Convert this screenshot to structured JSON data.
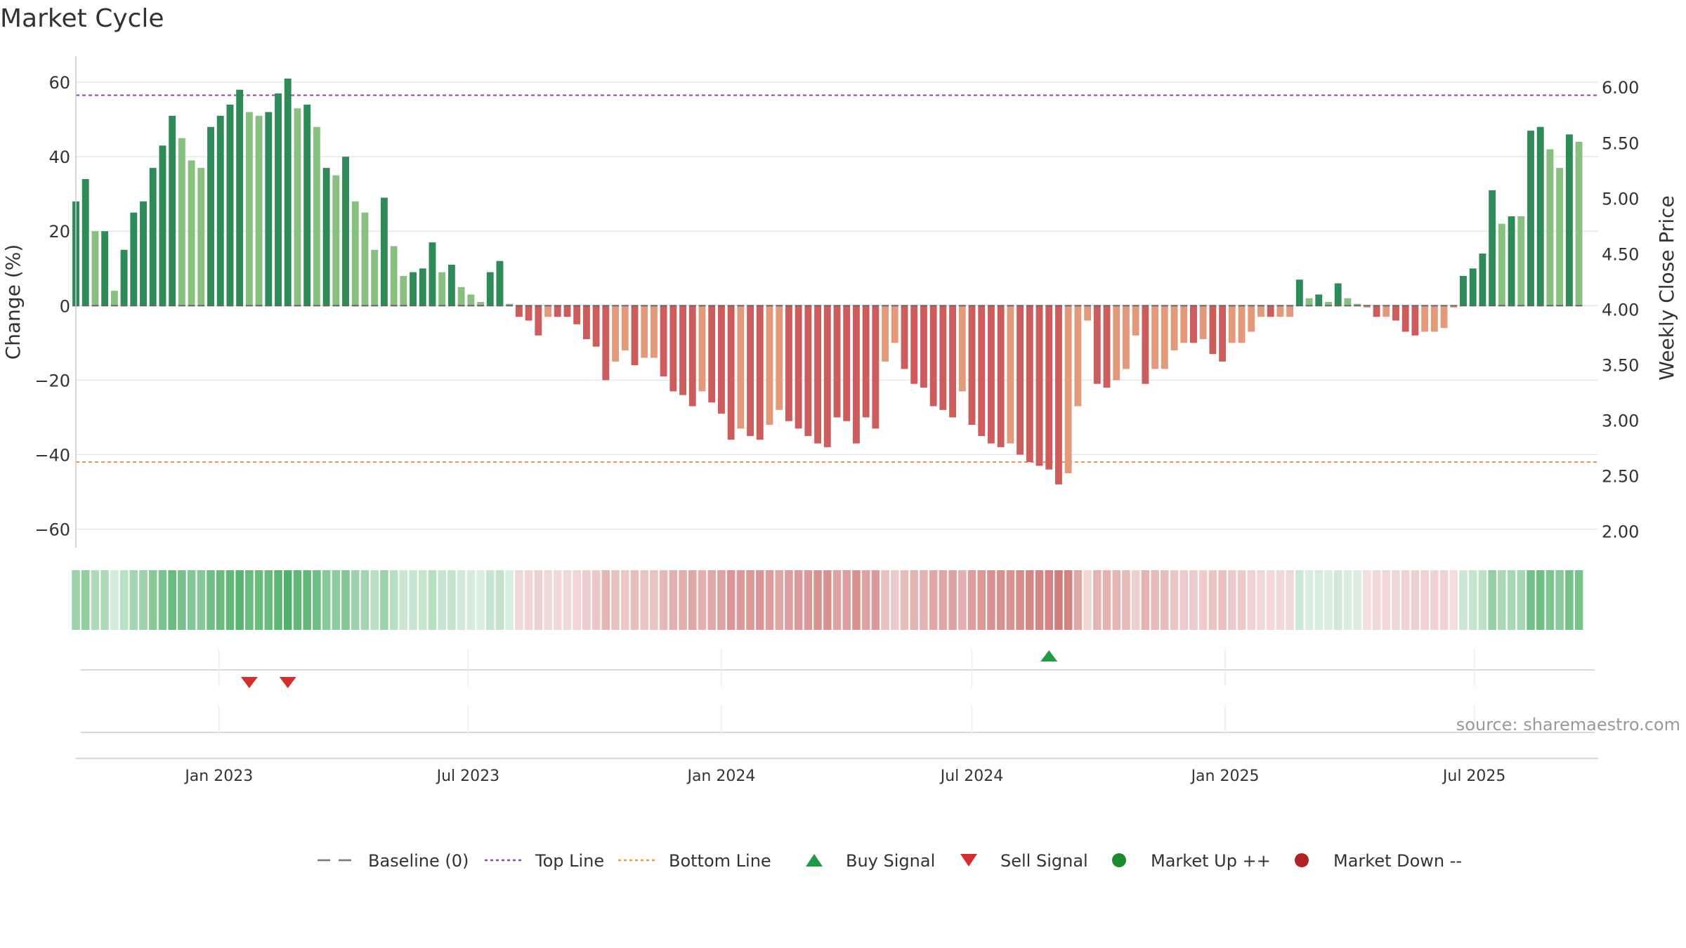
{
  "chart_data": {
    "type": "bar",
    "title": "Market Cycle",
    "ylabel": "Change (%)",
    "y2label": "Weekly Close Price",
    "ylim": [
      -65,
      67
    ],
    "y2lim": [
      1.85,
      6.28
    ],
    "yticks": [
      60,
      40,
      20,
      0,
      -20,
      -40,
      -60
    ],
    "yticklabels": [
      "60",
      "40",
      "20",
      "0",
      "−20",
      "−40",
      "−60"
    ],
    "y2ticks": [
      6.0,
      5.5,
      5.0,
      4.5,
      4.0,
      3.5,
      3.0,
      2.5,
      2.0
    ],
    "y2ticklabels": [
      "6.00",
      "5.50",
      "5.00",
      "4.50",
      "4.00",
      "3.50",
      "3.00",
      "2.50",
      "2.00"
    ],
    "top_line": 56.5,
    "bottom_line": -42,
    "x_start": "2022-09-19",
    "x_end": "2025-09-29",
    "xticks": [
      "2023-01-01",
      "2023-07-01",
      "2024-01-01",
      "2024-07-01",
      "2025-01-01",
      "2025-07-01"
    ],
    "xticklabels": [
      "Jan 2023",
      "Jul 2023",
      "Jan 2024",
      "Jul 2024",
      "Jan 2025",
      "Jul 2025"
    ],
    "bars": [
      {
        "date": "2022-09-19",
        "value": 28,
        "tone": "strong"
      },
      {
        "date": "2022-09-26",
        "value": 34,
        "tone": "strong"
      },
      {
        "date": "2022-10-03",
        "value": 20,
        "tone": "light"
      },
      {
        "date": "2022-10-10",
        "value": 20,
        "tone": "strong"
      },
      {
        "date": "2022-10-17",
        "value": 4,
        "tone": "light"
      },
      {
        "date": "2022-10-24",
        "value": 15,
        "tone": "strong"
      },
      {
        "date": "2022-10-31",
        "value": 25,
        "tone": "strong"
      },
      {
        "date": "2022-11-07",
        "value": 28,
        "tone": "strong"
      },
      {
        "date": "2022-11-14",
        "value": 37,
        "tone": "strong"
      },
      {
        "date": "2022-11-21",
        "value": 43,
        "tone": "strong"
      },
      {
        "date": "2022-11-28",
        "value": 51,
        "tone": "strong"
      },
      {
        "date": "2022-12-05",
        "value": 45,
        "tone": "light"
      },
      {
        "date": "2022-12-12",
        "value": 39,
        "tone": "light"
      },
      {
        "date": "2022-12-19",
        "value": 37,
        "tone": "light"
      },
      {
        "date": "2022-12-26",
        "value": 48,
        "tone": "strong"
      },
      {
        "date": "2023-01-02",
        "value": 51,
        "tone": "strong"
      },
      {
        "date": "2023-01-09",
        "value": 54,
        "tone": "strong"
      },
      {
        "date": "2023-01-16",
        "value": 58,
        "tone": "strong"
      },
      {
        "date": "2023-01-23",
        "value": 52,
        "tone": "light"
      },
      {
        "date": "2023-01-30",
        "value": 51,
        "tone": "light"
      },
      {
        "date": "2023-02-06",
        "value": 52,
        "tone": "strong"
      },
      {
        "date": "2023-02-13",
        "value": 57,
        "tone": "strong"
      },
      {
        "date": "2023-02-20",
        "value": 61,
        "tone": "strong"
      },
      {
        "date": "2023-02-27",
        "value": 53,
        "tone": "light"
      },
      {
        "date": "2023-03-06",
        "value": 54,
        "tone": "strong"
      },
      {
        "date": "2023-03-13",
        "value": 48,
        "tone": "light"
      },
      {
        "date": "2023-03-20",
        "value": 37,
        "tone": "strong"
      },
      {
        "date": "2023-03-27",
        "value": 35,
        "tone": "light"
      },
      {
        "date": "2023-04-03",
        "value": 40,
        "tone": "strong"
      },
      {
        "date": "2023-04-10",
        "value": 28,
        "tone": "light"
      },
      {
        "date": "2023-04-17",
        "value": 25,
        "tone": "light"
      },
      {
        "date": "2023-04-24",
        "value": 15,
        "tone": "light"
      },
      {
        "date": "2023-05-01",
        "value": 29,
        "tone": "strong"
      },
      {
        "date": "2023-05-08",
        "value": 16,
        "tone": "light"
      },
      {
        "date": "2023-05-15",
        "value": 8,
        "tone": "light"
      },
      {
        "date": "2023-05-22",
        "value": 9,
        "tone": "strong"
      },
      {
        "date": "2023-05-29",
        "value": 10,
        "tone": "strong"
      },
      {
        "date": "2023-06-05",
        "value": 17,
        "tone": "strong"
      },
      {
        "date": "2023-06-12",
        "value": 9,
        "tone": "light"
      },
      {
        "date": "2023-06-19",
        "value": 11,
        "tone": "strong"
      },
      {
        "date": "2023-06-26",
        "value": 5,
        "tone": "light"
      },
      {
        "date": "2023-07-03",
        "value": 3,
        "tone": "light"
      },
      {
        "date": "2023-07-10",
        "value": 1,
        "tone": "light"
      },
      {
        "date": "2023-07-17",
        "value": 9,
        "tone": "strong"
      },
      {
        "date": "2023-07-24",
        "value": 12,
        "tone": "strong"
      },
      {
        "date": "2023-07-31",
        "value": 0.5,
        "tone": "light"
      },
      {
        "date": "2023-08-07",
        "value": -3,
        "tone": "strong"
      },
      {
        "date": "2023-08-14",
        "value": -4,
        "tone": "strong"
      },
      {
        "date": "2023-08-21",
        "value": -8,
        "tone": "strong"
      },
      {
        "date": "2023-08-28",
        "value": -3,
        "tone": "light"
      },
      {
        "date": "2023-09-04",
        "value": -3,
        "tone": "strong"
      },
      {
        "date": "2023-09-11",
        "value": -3,
        "tone": "strong"
      },
      {
        "date": "2023-09-18",
        "value": -5,
        "tone": "strong"
      },
      {
        "date": "2023-09-25",
        "value": -9,
        "tone": "strong"
      },
      {
        "date": "2023-10-02",
        "value": -11,
        "tone": "strong"
      },
      {
        "date": "2023-10-09",
        "value": -20,
        "tone": "strong"
      },
      {
        "date": "2023-10-16",
        "value": -15,
        "tone": "light"
      },
      {
        "date": "2023-10-23",
        "value": -12,
        "tone": "light"
      },
      {
        "date": "2023-10-30",
        "value": -16,
        "tone": "strong"
      },
      {
        "date": "2023-11-06",
        "value": -14,
        "tone": "light"
      },
      {
        "date": "2023-11-13",
        "value": -14,
        "tone": "light"
      },
      {
        "date": "2023-11-20",
        "value": -19,
        "tone": "strong"
      },
      {
        "date": "2023-11-27",
        "value": -23,
        "tone": "strong"
      },
      {
        "date": "2023-12-04",
        "value": -24,
        "tone": "strong"
      },
      {
        "date": "2023-12-11",
        "value": -27,
        "tone": "strong"
      },
      {
        "date": "2023-12-18",
        "value": -23,
        "tone": "light"
      },
      {
        "date": "2023-12-25",
        "value": -26,
        "tone": "strong"
      },
      {
        "date": "2024-01-01",
        "value": -29,
        "tone": "strong"
      },
      {
        "date": "2024-01-08",
        "value": -36,
        "tone": "strong"
      },
      {
        "date": "2024-01-15",
        "value": -33,
        "tone": "light"
      },
      {
        "date": "2024-01-22",
        "value": -35,
        "tone": "strong"
      },
      {
        "date": "2024-01-29",
        "value": -36,
        "tone": "strong"
      },
      {
        "date": "2024-02-05",
        "value": -32,
        "tone": "light"
      },
      {
        "date": "2024-02-12",
        "value": -28,
        "tone": "light"
      },
      {
        "date": "2024-02-19",
        "value": -31,
        "tone": "strong"
      },
      {
        "date": "2024-02-26",
        "value": -33,
        "tone": "strong"
      },
      {
        "date": "2024-03-04",
        "value": -35,
        "tone": "strong"
      },
      {
        "date": "2024-03-11",
        "value": -37,
        "tone": "strong"
      },
      {
        "date": "2024-03-18",
        "value": -38,
        "tone": "strong"
      },
      {
        "date": "2024-03-25",
        "value": -30,
        "tone": "strong"
      },
      {
        "date": "2024-04-01",
        "value": -31,
        "tone": "strong"
      },
      {
        "date": "2024-04-08",
        "value": -37,
        "tone": "strong"
      },
      {
        "date": "2024-04-15",
        "value": -30,
        "tone": "strong"
      },
      {
        "date": "2024-04-22",
        "value": -33,
        "tone": "strong"
      },
      {
        "date": "2024-04-29",
        "value": -15,
        "tone": "light"
      },
      {
        "date": "2024-05-06",
        "value": -10,
        "tone": "light"
      },
      {
        "date": "2024-05-13",
        "value": -17,
        "tone": "strong"
      },
      {
        "date": "2024-05-20",
        "value": -21,
        "tone": "strong"
      },
      {
        "date": "2024-05-27",
        "value": -22,
        "tone": "strong"
      },
      {
        "date": "2024-06-03",
        "value": -27,
        "tone": "strong"
      },
      {
        "date": "2024-06-10",
        "value": -28,
        "tone": "strong"
      },
      {
        "date": "2024-06-17",
        "value": -30,
        "tone": "strong"
      },
      {
        "date": "2024-06-24",
        "value": -23,
        "tone": "light"
      },
      {
        "date": "2024-07-01",
        "value": -32,
        "tone": "strong"
      },
      {
        "date": "2024-07-08",
        "value": -35,
        "tone": "strong"
      },
      {
        "date": "2024-07-15",
        "value": -37,
        "tone": "strong"
      },
      {
        "date": "2024-07-22",
        "value": -38,
        "tone": "strong"
      },
      {
        "date": "2024-07-29",
        "value": -37,
        "tone": "light"
      },
      {
        "date": "2024-08-05",
        "value": -40,
        "tone": "strong"
      },
      {
        "date": "2024-08-12",
        "value": -42,
        "tone": "strong"
      },
      {
        "date": "2024-08-19",
        "value": -43,
        "tone": "strong"
      },
      {
        "date": "2024-08-26",
        "value": -44,
        "tone": "strong"
      },
      {
        "date": "2024-09-02",
        "value": -48,
        "tone": "strong"
      },
      {
        "date": "2024-09-09",
        "value": -45,
        "tone": "light"
      },
      {
        "date": "2024-09-16",
        "value": -27,
        "tone": "light"
      },
      {
        "date": "2024-09-23",
        "value": -4,
        "tone": "light"
      },
      {
        "date": "2024-09-30",
        "value": -21,
        "tone": "strong"
      },
      {
        "date": "2024-10-07",
        "value": -22,
        "tone": "strong"
      },
      {
        "date": "2024-10-14",
        "value": -20,
        "tone": "light"
      },
      {
        "date": "2024-10-21",
        "value": -17,
        "tone": "light"
      },
      {
        "date": "2024-10-28",
        "value": -8,
        "tone": "light"
      },
      {
        "date": "2024-11-04",
        "value": -21,
        "tone": "strong"
      },
      {
        "date": "2024-11-11",
        "value": -17,
        "tone": "light"
      },
      {
        "date": "2024-11-18",
        "value": -17,
        "tone": "light"
      },
      {
        "date": "2024-11-25",
        "value": -12,
        "tone": "light"
      },
      {
        "date": "2024-12-02",
        "value": -10,
        "tone": "light"
      },
      {
        "date": "2024-12-09",
        "value": -10,
        "tone": "strong"
      },
      {
        "date": "2024-12-16",
        "value": -9,
        "tone": "light"
      },
      {
        "date": "2024-12-23",
        "value": -13,
        "tone": "strong"
      },
      {
        "date": "2024-12-30",
        "value": -15,
        "tone": "strong"
      },
      {
        "date": "2025-01-06",
        "value": -10,
        "tone": "light"
      },
      {
        "date": "2025-01-13",
        "value": -10,
        "tone": "light"
      },
      {
        "date": "2025-01-20",
        "value": -7,
        "tone": "light"
      },
      {
        "date": "2025-01-27",
        "value": -3,
        "tone": "light"
      },
      {
        "date": "2025-02-03",
        "value": -3,
        "tone": "strong"
      },
      {
        "date": "2025-02-10",
        "value": -3,
        "tone": "light"
      },
      {
        "date": "2025-02-17",
        "value": -3,
        "tone": "light"
      },
      {
        "date": "2025-02-24",
        "value": 7,
        "tone": "strong"
      },
      {
        "date": "2025-03-03",
        "value": 2,
        "tone": "light"
      },
      {
        "date": "2025-03-10",
        "value": 3,
        "tone": "strong"
      },
      {
        "date": "2025-03-17",
        "value": 1,
        "tone": "light"
      },
      {
        "date": "2025-03-24",
        "value": 6,
        "tone": "strong"
      },
      {
        "date": "2025-03-31",
        "value": 2,
        "tone": "light"
      },
      {
        "date": "2025-04-07",
        "value": 0.5,
        "tone": "light"
      },
      {
        "date": "2025-04-14",
        "value": -0.5,
        "tone": "light"
      },
      {
        "date": "2025-04-21",
        "value": -3,
        "tone": "strong"
      },
      {
        "date": "2025-04-28",
        "value": -3,
        "tone": "light"
      },
      {
        "date": "2025-05-05",
        "value": -4,
        "tone": "strong"
      },
      {
        "date": "2025-05-12",
        "value": -7,
        "tone": "strong"
      },
      {
        "date": "2025-05-19",
        "value": -8,
        "tone": "strong"
      },
      {
        "date": "2025-05-26",
        "value": -7,
        "tone": "light"
      },
      {
        "date": "2025-06-02",
        "value": -7,
        "tone": "light"
      },
      {
        "date": "2025-06-09",
        "value": -6,
        "tone": "light"
      },
      {
        "date": "2025-06-16",
        "value": -0.5,
        "tone": "light"
      },
      {
        "date": "2025-06-23",
        "value": 8,
        "tone": "strong"
      },
      {
        "date": "2025-06-30",
        "value": 10,
        "tone": "strong"
      },
      {
        "date": "2025-07-07",
        "value": 14,
        "tone": "strong"
      },
      {
        "date": "2025-07-14",
        "value": 31,
        "tone": "strong"
      },
      {
        "date": "2025-07-21",
        "value": 22,
        "tone": "light"
      },
      {
        "date": "2025-07-28",
        "value": 24,
        "tone": "strong"
      },
      {
        "date": "2025-08-04",
        "value": 24,
        "tone": "light"
      },
      {
        "date": "2025-08-11",
        "value": 47,
        "tone": "strong"
      },
      {
        "date": "2025-08-18",
        "value": 48,
        "tone": "strong"
      },
      {
        "date": "2025-08-25",
        "value": 42,
        "tone": "light"
      },
      {
        "date": "2025-09-01",
        "value": 37,
        "tone": "light"
      },
      {
        "date": "2025-09-08",
        "value": 46,
        "tone": "strong"
      },
      {
        "date": "2025-09-15",
        "value": 44,
        "tone": "light"
      }
    ],
    "buy_signals": [
      "2024-08-26"
    ],
    "sell_signals": [
      "2023-01-23",
      "2023-02-20"
    ],
    "legend": [
      {
        "label": "Baseline (0)",
        "marker": "dash",
        "color": "#777777"
      },
      {
        "label": "Top Line",
        "marker": "dotted",
        "color": "#8e44ad"
      },
      {
        "label": "Bottom Line",
        "marker": "dotted",
        "color": "#e69a4c"
      },
      {
        "label": "Buy Signal",
        "marker": "triangle-up",
        "color": "#1e9b45"
      },
      {
        "label": "Sell Signal",
        "marker": "triangle-down",
        "color": "#d32f2f"
      },
      {
        "label": "Market Up ++",
        "marker": "circle",
        "color": "#1e8a2e"
      },
      {
        "label": "Market Down --",
        "marker": "circle",
        "color": "#b22222"
      }
    ],
    "legend_position": "bottom",
    "grid": true
  },
  "colors": {
    "up_strong": "#2e8b57",
    "up_light": "#88c17f",
    "down_strong": "#cd5c5c",
    "down_light": "#e39a7b",
    "top_line": "#8e44ad",
    "bottom_line": "#e69a4c",
    "band_up": "#3fa85a",
    "band_down": "#c0504d"
  },
  "source": "source: sharemaestro.com"
}
